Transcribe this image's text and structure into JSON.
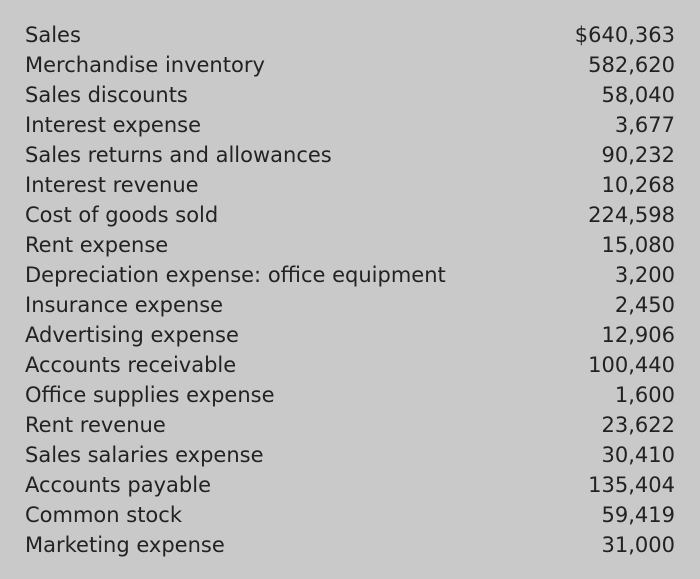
{
  "rows": [
    {
      "label": "Sales",
      "value": "$640,363"
    },
    {
      "label": "Merchandise inventory",
      "value": "582,620"
    },
    {
      "label": "Sales discounts",
      "value": "58,040"
    },
    {
      "label": "Interest expense",
      "value": "3,677"
    },
    {
      "label": "Sales returns and allowances",
      "value": "90,232"
    },
    {
      "label": "Interest revenue",
      "value": "10,268"
    },
    {
      "label": "Cost of goods sold",
      "value": "224,598"
    },
    {
      "label": "Rent expense",
      "value": "15,080"
    },
    {
      "label": "Depreciation expense: office equipment",
      "value": "3,200"
    },
    {
      "label": "Insurance expense",
      "value": "2,450"
    },
    {
      "label": "Advertising expense",
      "value": "12,906"
    },
    {
      "label": "Accounts receivable",
      "value": "100,440"
    },
    {
      "label": "Office supplies expense",
      "value": "1,600"
    },
    {
      "label": "Rent revenue",
      "value": "23,622"
    },
    {
      "label": "Sales salaries expense",
      "value": "30,410"
    },
    {
      "label": "Accounts payable",
      "value": "135,404"
    },
    {
      "label": "Common stock",
      "value": "59,419"
    },
    {
      "label": "Marketing expense",
      "value": "31,000"
    }
  ]
}
